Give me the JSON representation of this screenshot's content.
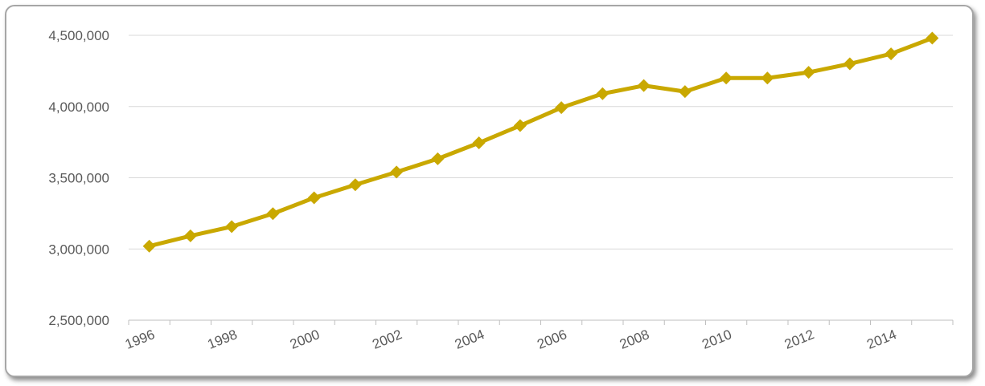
{
  "chart_data": {
    "type": "line",
    "title": "",
    "xlabel": "",
    "ylabel": "",
    "grid": true,
    "legend": "none",
    "color": "#c9a800",
    "marker": "diamond",
    "ylim": [
      2500000,
      4500000
    ],
    "yticks": [
      2500000,
      3000000,
      3500000,
      4000000,
      4500000
    ],
    "ytick_labels": [
      "2,500,000",
      "3,000,000",
      "3,500,000",
      "4,000,000",
      "4,500,000"
    ],
    "xtick_labels": [
      "1996",
      "1998",
      "2000",
      "2002",
      "2004",
      "2006",
      "2008",
      "2010",
      "2012",
      "2014"
    ],
    "x": [
      1996,
      1997,
      1998,
      1999,
      2000,
      2001,
      2002,
      2003,
      2004,
      2005,
      2006,
      2007,
      2008,
      2009,
      2010,
      2011,
      2012,
      2013,
      2014,
      2015
    ],
    "series": [
      {
        "values": [
          3020000,
          3092000,
          3157000,
          3248000,
          3359000,
          3451000,
          3540000,
          3633000,
          3745000,
          3866000,
          3992000,
          4090000,
          4147000,
          4105000,
          4200000,
          4200000,
          4240000,
          4300000,
          4370000,
          4480000
        ]
      }
    ]
  }
}
